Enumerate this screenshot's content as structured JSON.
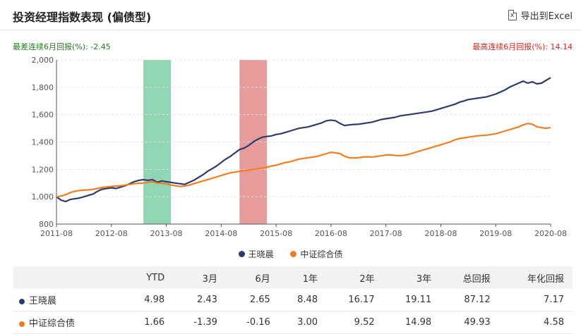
{
  "header": {
    "title": "投资经理指数表现 (偏债型)",
    "export_label": "导出到Excel",
    "export_icon": "excel-file-icon"
  },
  "annotations": {
    "worst": "最差连续6月回报(%): -2.45",
    "best": "最高连续6月回报(%): 14.14"
  },
  "colors": {
    "manager": "#2e3a6e",
    "index": "#f47d21",
    "worst_band": "#7ccfa8",
    "best_band": "#e38a8a"
  },
  "chart_data": {
    "type": "line",
    "x_ticks": [
      "2011-08",
      "2012-08",
      "2013-08",
      "2014-08",
      "2015-08",
      "2016-08",
      "2017-08",
      "2018-08",
      "2019-08",
      "2020-08"
    ],
    "y_ticks": [
      "800",
      "1,000",
      "1,200",
      "1,400",
      "1,600",
      "1,800",
      "2,000"
    ],
    "ylim": [
      800,
      2000
    ],
    "xlim": [
      "2011-08",
      "2020-08"
    ],
    "grid": true,
    "legend_position": "bottom-center",
    "bands": [
      {
        "label": "worst",
        "start": "2013-03",
        "end": "2013-09"
      },
      {
        "label": "best",
        "start": "2014-12",
        "end": "2015-06"
      }
    ],
    "series": [
      {
        "name": "王晓晨",
        "points": [
          [
            "2011-08",
            1000
          ],
          [
            "2011-09",
            975
          ],
          [
            "2011-10",
            965
          ],
          [
            "2011-11",
            980
          ],
          [
            "2011-12",
            985
          ],
          [
            "2012-01",
            990
          ],
          [
            "2012-02",
            1000
          ],
          [
            "2012-03",
            1010
          ],
          [
            "2012-04",
            1020
          ],
          [
            "2012-05",
            1040
          ],
          [
            "2012-06",
            1055
          ],
          [
            "2012-07",
            1060
          ],
          [
            "2012-08",
            1065
          ],
          [
            "2012-09",
            1060
          ],
          [
            "2012-10",
            1070
          ],
          [
            "2012-11",
            1080
          ],
          [
            "2012-12",
            1095
          ],
          [
            "2013-01",
            1110
          ],
          [
            "2013-02",
            1120
          ],
          [
            "2013-03",
            1125
          ],
          [
            "2013-04",
            1120
          ],
          [
            "2013-05",
            1125
          ],
          [
            "2013-06",
            1105
          ],
          [
            "2013-07",
            1115
          ],
          [
            "2013-08",
            1110
          ],
          [
            "2013-09",
            1105
          ],
          [
            "2013-10",
            1100
          ],
          [
            "2013-11",
            1095
          ],
          [
            "2013-12",
            1090
          ],
          [
            "2014-01",
            1105
          ],
          [
            "2014-02",
            1120
          ],
          [
            "2014-03",
            1140
          ],
          [
            "2014-04",
            1160
          ],
          [
            "2014-05",
            1185
          ],
          [
            "2014-06",
            1205
          ],
          [
            "2014-07",
            1225
          ],
          [
            "2014-08",
            1250
          ],
          [
            "2014-09",
            1275
          ],
          [
            "2014-10",
            1295
          ],
          [
            "2014-11",
            1320
          ],
          [
            "2014-12",
            1345
          ],
          [
            "2015-01",
            1355
          ],
          [
            "2015-02",
            1375
          ],
          [
            "2015-03",
            1400
          ],
          [
            "2015-04",
            1420
          ],
          [
            "2015-05",
            1435
          ],
          [
            "2015-06",
            1440
          ],
          [
            "2015-07",
            1445
          ],
          [
            "2015-08",
            1455
          ],
          [
            "2015-09",
            1460
          ],
          [
            "2015-10",
            1470
          ],
          [
            "2015-11",
            1480
          ],
          [
            "2015-12",
            1490
          ],
          [
            "2016-01",
            1500
          ],
          [
            "2016-02",
            1505
          ],
          [
            "2016-03",
            1510
          ],
          [
            "2016-04",
            1520
          ],
          [
            "2016-05",
            1530
          ],
          [
            "2016-06",
            1540
          ],
          [
            "2016-07",
            1555
          ],
          [
            "2016-08",
            1560
          ],
          [
            "2016-09",
            1555
          ],
          [
            "2016-10",
            1535
          ],
          [
            "2016-11",
            1520
          ],
          [
            "2016-12",
            1525
          ],
          [
            "2017-01",
            1528
          ],
          [
            "2017-02",
            1530
          ],
          [
            "2017-03",
            1535
          ],
          [
            "2017-04",
            1540
          ],
          [
            "2017-05",
            1545
          ],
          [
            "2017-06",
            1555
          ],
          [
            "2017-07",
            1565
          ],
          [
            "2017-08",
            1570
          ],
          [
            "2017-09",
            1575
          ],
          [
            "2017-10",
            1580
          ],
          [
            "2017-11",
            1590
          ],
          [
            "2017-12",
            1595
          ],
          [
            "2018-01",
            1600
          ],
          [
            "2018-02",
            1605
          ],
          [
            "2018-03",
            1610
          ],
          [
            "2018-04",
            1615
          ],
          [
            "2018-05",
            1620
          ],
          [
            "2018-06",
            1625
          ],
          [
            "2018-07",
            1635
          ],
          [
            "2018-08",
            1645
          ],
          [
            "2018-09",
            1655
          ],
          [
            "2018-10",
            1665
          ],
          [
            "2018-11",
            1675
          ],
          [
            "2018-12",
            1690
          ],
          [
            "2019-01",
            1700
          ],
          [
            "2019-02",
            1710
          ],
          [
            "2019-03",
            1715
          ],
          [
            "2019-04",
            1720
          ],
          [
            "2019-05",
            1725
          ],
          [
            "2019-06",
            1730
          ],
          [
            "2019-07",
            1740
          ],
          [
            "2019-08",
            1750
          ],
          [
            "2019-09",
            1765
          ],
          [
            "2019-10",
            1780
          ],
          [
            "2019-11",
            1800
          ],
          [
            "2019-12",
            1815
          ],
          [
            "2020-01",
            1830
          ],
          [
            "2020-02",
            1845
          ],
          [
            "2020-03",
            1830
          ],
          [
            "2020-04",
            1840
          ],
          [
            "2020-05",
            1825
          ],
          [
            "2020-06",
            1830
          ],
          [
            "2020-07",
            1850
          ],
          [
            "2020-08",
            1870
          ]
        ]
      },
      {
        "name": "中证综合债",
        "points": [
          [
            "2011-08",
            1000
          ],
          [
            "2011-09",
            1005
          ],
          [
            "2011-10",
            1015
          ],
          [
            "2011-11",
            1030
          ],
          [
            "2011-12",
            1040
          ],
          [
            "2012-01",
            1045
          ],
          [
            "2012-02",
            1048
          ],
          [
            "2012-03",
            1050
          ],
          [
            "2012-04",
            1055
          ],
          [
            "2012-05",
            1060
          ],
          [
            "2012-06",
            1068
          ],
          [
            "2012-07",
            1072
          ],
          [
            "2012-08",
            1075
          ],
          [
            "2012-09",
            1078
          ],
          [
            "2012-10",
            1080
          ],
          [
            "2012-11",
            1085
          ],
          [
            "2012-12",
            1090
          ],
          [
            "2013-01",
            1095
          ],
          [
            "2013-02",
            1098
          ],
          [
            "2013-03",
            1100
          ],
          [
            "2013-04",
            1105
          ],
          [
            "2013-05",
            1110
          ],
          [
            "2013-06",
            1100
          ],
          [
            "2013-07",
            1098
          ],
          [
            "2013-08",
            1095
          ],
          [
            "2013-09",
            1085
          ],
          [
            "2013-10",
            1080
          ],
          [
            "2013-11",
            1075
          ],
          [
            "2013-12",
            1078
          ],
          [
            "2014-01",
            1085
          ],
          [
            "2014-02",
            1095
          ],
          [
            "2014-03",
            1105
          ],
          [
            "2014-04",
            1115
          ],
          [
            "2014-05",
            1125
          ],
          [
            "2014-06",
            1135
          ],
          [
            "2014-07",
            1145
          ],
          [
            "2014-08",
            1155
          ],
          [
            "2014-09",
            1165
          ],
          [
            "2014-10",
            1175
          ],
          [
            "2014-11",
            1180
          ],
          [
            "2014-12",
            1185
          ],
          [
            "2015-01",
            1190
          ],
          [
            "2015-02",
            1195
          ],
          [
            "2015-03",
            1200
          ],
          [
            "2015-04",
            1205
          ],
          [
            "2015-05",
            1210
          ],
          [
            "2015-06",
            1215
          ],
          [
            "2015-07",
            1225
          ],
          [
            "2015-08",
            1230
          ],
          [
            "2015-09",
            1240
          ],
          [
            "2015-10",
            1250
          ],
          [
            "2015-11",
            1255
          ],
          [
            "2015-12",
            1265
          ],
          [
            "2016-01",
            1275
          ],
          [
            "2016-02",
            1280
          ],
          [
            "2016-03",
            1285
          ],
          [
            "2016-04",
            1290
          ],
          [
            "2016-05",
            1295
          ],
          [
            "2016-06",
            1305
          ],
          [
            "2016-07",
            1315
          ],
          [
            "2016-08",
            1325
          ],
          [
            "2016-09",
            1320
          ],
          [
            "2016-10",
            1315
          ],
          [
            "2016-11",
            1295
          ],
          [
            "2016-12",
            1285
          ],
          [
            "2017-01",
            1283
          ],
          [
            "2017-02",
            1285
          ],
          [
            "2017-03",
            1290
          ],
          [
            "2017-04",
            1292
          ],
          [
            "2017-05",
            1290
          ],
          [
            "2017-06",
            1295
          ],
          [
            "2017-07",
            1300
          ],
          [
            "2017-08",
            1305
          ],
          [
            "2017-09",
            1305
          ],
          [
            "2017-10",
            1302
          ],
          [
            "2017-11",
            1300
          ],
          [
            "2017-12",
            1303
          ],
          [
            "2018-01",
            1310
          ],
          [
            "2018-02",
            1320
          ],
          [
            "2018-03",
            1330
          ],
          [
            "2018-04",
            1340
          ],
          [
            "2018-05",
            1350
          ],
          [
            "2018-06",
            1360
          ],
          [
            "2018-07",
            1370
          ],
          [
            "2018-08",
            1380
          ],
          [
            "2018-09",
            1390
          ],
          [
            "2018-10",
            1400
          ],
          [
            "2018-11",
            1415
          ],
          [
            "2018-12",
            1425
          ],
          [
            "2019-01",
            1430
          ],
          [
            "2019-02",
            1435
          ],
          [
            "2019-03",
            1440
          ],
          [
            "2019-04",
            1445
          ],
          [
            "2019-05",
            1448
          ],
          [
            "2019-06",
            1450
          ],
          [
            "2019-07",
            1455
          ],
          [
            "2019-08",
            1460
          ],
          [
            "2019-09",
            1470
          ],
          [
            "2019-10",
            1480
          ],
          [
            "2019-11",
            1490
          ],
          [
            "2019-12",
            1500
          ],
          [
            "2020-01",
            1510
          ],
          [
            "2020-02",
            1525
          ],
          [
            "2020-03",
            1535
          ],
          [
            "2020-04",
            1530
          ],
          [
            "2020-05",
            1510
          ],
          [
            "2020-06",
            1505
          ],
          [
            "2020-07",
            1500
          ],
          [
            "2020-08",
            1505
          ]
        ]
      }
    ]
  },
  "table": {
    "headers": [
      "",
      "YTD",
      "3月",
      "6月",
      "1年",
      "2年",
      "3年",
      "总回报",
      "年化回报"
    ],
    "rows": [
      {
        "name": "王晓晨",
        "values": [
          "4.98",
          "2.43",
          "2.65",
          "8.48",
          "16.17",
          "19.11",
          "87.12",
          "7.17"
        ]
      },
      {
        "name": "中证综合债",
        "values": [
          "1.66",
          "-1.39",
          "-0.16",
          "3.00",
          "9.52",
          "14.98",
          "49.93",
          "4.58"
        ]
      }
    ]
  }
}
